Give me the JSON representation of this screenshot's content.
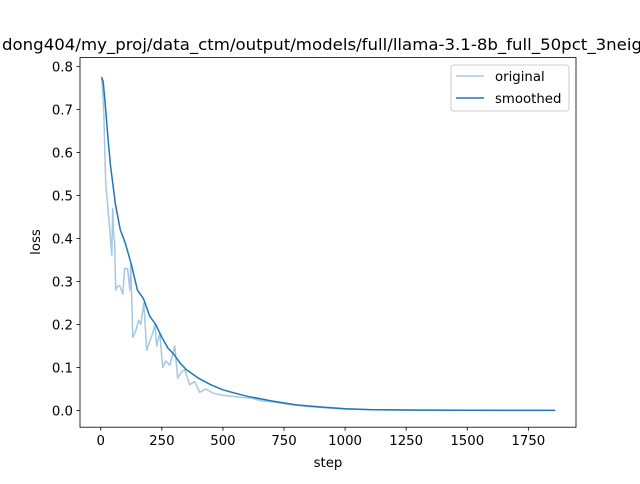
{
  "chart_data": {
    "type": "line",
    "title": "dong404/my_proj/data_ctm/output/models/full/llama-3.1-8b_full_50pct_3neig",
    "xlabel": "step",
    "ylabel": "loss",
    "xlim": [
      -85,
      1945
    ],
    "ylim": [
      -0.039,
      0.821
    ],
    "xticks": [
      0,
      250,
      500,
      750,
      1000,
      1250,
      1500,
      1750
    ],
    "yticks": [
      0.0,
      0.1,
      0.2,
      0.3,
      0.4,
      0.5,
      0.6,
      0.7,
      0.8
    ],
    "xtick_labels": [
      "0",
      "250",
      "500",
      "750",
      "1000",
      "1250",
      "1500",
      "1750"
    ],
    "ytick_labels": [
      "0.0",
      "0.1",
      "0.2",
      "0.3",
      "0.4",
      "0.5",
      "0.6",
      "0.7",
      "0.8"
    ],
    "legend_position": "top-right",
    "grid": false,
    "series": [
      {
        "name": "original",
        "color": "#a6c8e3",
        "x": [
          4,
          12,
          20,
          28,
          37,
          45,
          49,
          53,
          57,
          61,
          70,
          78,
          90,
          98,
          110,
          119,
          123,
          131,
          143,
          155,
          164,
          176,
          188,
          200,
          213,
          221,
          229,
          241,
          254,
          266,
          282,
          303,
          315,
          330,
          344,
          364,
          384,
          405,
          430,
          460,
          500,
          540,
          580,
          620,
          660,
          700,
          750,
          800,
          850,
          900,
          950,
          1000,
          1100,
          1200,
          1400,
          1600,
          1860
        ],
        "y": [
          0.777,
          0.7,
          0.53,
          0.48,
          0.42,
          0.36,
          0.47,
          0.41,
          0.39,
          0.28,
          0.29,
          0.29,
          0.27,
          0.33,
          0.33,
          0.28,
          0.34,
          0.17,
          0.185,
          0.21,
          0.2,
          0.25,
          0.14,
          0.16,
          0.18,
          0.2,
          0.15,
          0.18,
          0.1,
          0.115,
          0.105,
          0.15,
          0.075,
          0.09,
          0.095,
          0.06,
          0.067,
          0.042,
          0.05,
          0.04,
          0.035,
          0.033,
          0.03,
          0.028,
          0.022,
          0.02,
          0.016,
          0.012,
          0.009,
          0.007,
          0.005,
          0.003,
          0.002,
          0.001,
          0.0006,
          0.0005,
          0.0004
        ]
      },
      {
        "name": "smoothed",
        "color": "#1f77b4",
        "x": [
          4,
          10,
          20,
          30,
          40,
          60,
          80,
          100,
          125,
          150,
          175,
          200,
          225,
          250,
          275,
          300,
          325,
          350,
          400,
          450,
          500,
          550,
          600,
          700,
          800,
          900,
          1000,
          1100,
          1250,
          1500,
          1860
        ],
        "y": [
          0.775,
          0.765,
          0.7,
          0.63,
          0.57,
          0.48,
          0.42,
          0.39,
          0.34,
          0.28,
          0.26,
          0.22,
          0.2,
          0.17,
          0.145,
          0.13,
          0.11,
          0.095,
          0.075,
          0.06,
          0.048,
          0.04,
          0.033,
          0.022,
          0.013,
          0.008,
          0.004,
          0.002,
          0.001,
          0.0004,
          0.0002
        ]
      }
    ]
  }
}
